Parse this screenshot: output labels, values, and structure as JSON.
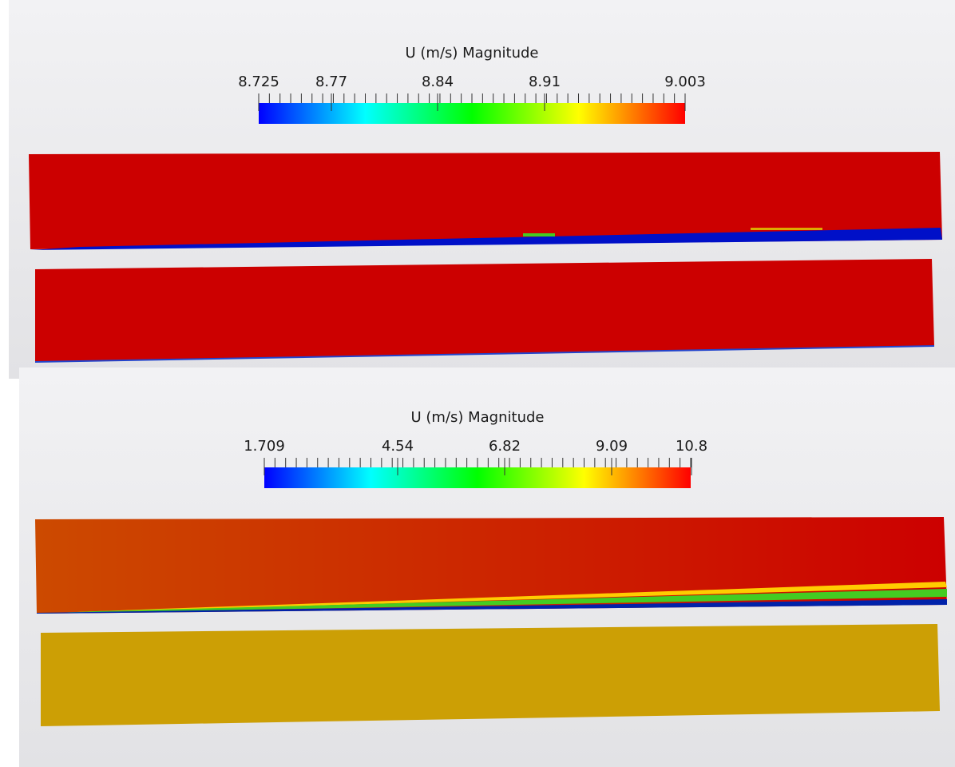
{
  "panels": [
    {
      "colorbar": {
        "title": "U (m/s) Magnitude",
        "labels": [
          "8.725",
          "8.77",
          "8.84",
          "8.91",
          "9.003"
        ]
      }
    },
    {
      "colorbar": {
        "title": "U (m/s) Magnitude",
        "labels": [
          "1.709",
          "4.54",
          "6.82",
          "9.09",
          "10.8"
        ]
      }
    }
  ]
}
